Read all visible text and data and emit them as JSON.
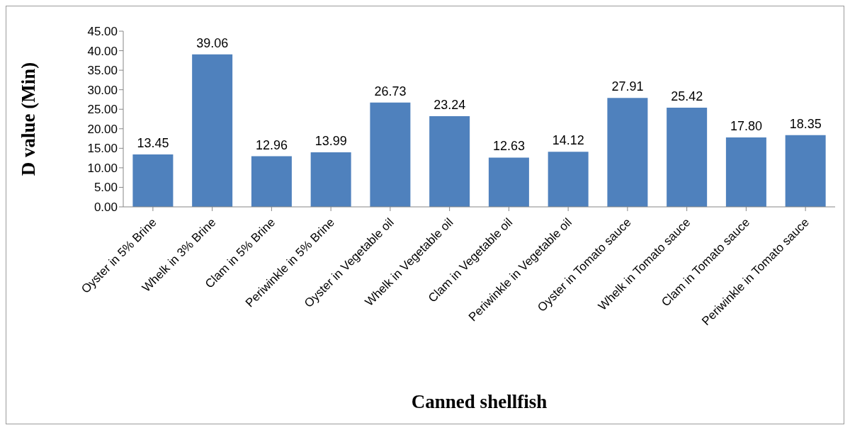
{
  "chart_data": {
    "type": "bar",
    "xlabel": "Canned shellfish",
    "ylabel": "D value (Min)",
    "categories": [
      "Oyster in 5% Brine",
      "Whelk in 3% Brine",
      "Clam in 5% Brine",
      "Periwinkle in 5% Brine",
      "Oyster in Vegetable oil",
      "Whelk in Vegetable oil",
      "Clam in Vegetable oil",
      "Periwinkle in Vegetable oil",
      "Oyster in Tomato sauce",
      "Whelk in Tomato sauce",
      "Clam in Tomato sauce",
      "Periwinkle in Tomato sauce"
    ],
    "values": [
      13.45,
      39.06,
      12.96,
      13.99,
      26.73,
      23.24,
      12.63,
      14.12,
      27.91,
      25.42,
      17.8,
      18.35
    ],
    "value_labels": [
      "13.45",
      "39.06",
      "12.96",
      "13.99",
      "26.73",
      "23.24",
      "12.63",
      "14.12",
      "27.91",
      "25.42",
      "17.80",
      "18.35"
    ],
    "color": "#4f81bd",
    "ylim": [
      0,
      45
    ],
    "yticks": [
      {
        "value": 0,
        "label": "0.00"
      },
      {
        "value": 5,
        "label": "5.00"
      },
      {
        "value": 10,
        "label": "10.00"
      },
      {
        "value": 15,
        "label": "15.00"
      },
      {
        "value": 20,
        "label": "20.00"
      },
      {
        "value": 25,
        "label": "25.00"
      },
      {
        "value": 30,
        "label": "30.00"
      },
      {
        "value": 35,
        "label": "35.00"
      },
      {
        "value": 40,
        "label": "40.00"
      },
      {
        "value": 45,
        "label": "45.00"
      }
    ],
    "grid": false,
    "legend": false
  }
}
